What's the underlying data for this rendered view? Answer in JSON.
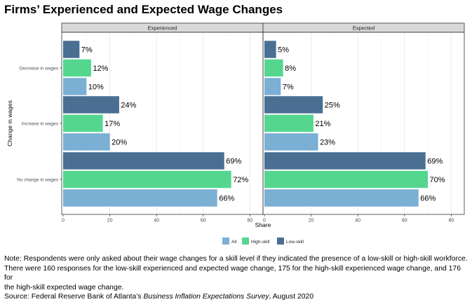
{
  "chart_data": {
    "type": "bar",
    "orientation": "horizontal",
    "title": "Firms’ Experienced and Expected Wage Changes",
    "xlabel": "Share",
    "ylabel": "Change in wages",
    "xlim": [
      0,
      85
    ],
    "xticks": [
      0,
      20,
      40,
      60,
      80
    ],
    "x_tick_labels": [
      "0",
      "20",
      "40",
      "60",
      "80"
    ],
    "categories": [
      "Decrease in wages",
      "Increase in wages",
      "No change in wages"
    ],
    "legend": {
      "position": "bottom",
      "order": [
        "All",
        "High-skill",
        "Low-skill"
      ],
      "colors": {
        "All": "#7bafd4",
        "High-skill": "#55d68f",
        "Low-skill": "#4a6f93"
      }
    },
    "panels": [
      {
        "name": "Experienced",
        "series": [
          {
            "name": "Low-skill",
            "values": [
              7,
              24,
              69
            ],
            "labels": [
              "7%",
              "24%",
              "69%"
            ]
          },
          {
            "name": "High-skill",
            "values": [
              12,
              17,
              72
            ],
            "labels": [
              "12%",
              "17%",
              "72%"
            ]
          },
          {
            "name": "All",
            "values": [
              10,
              20,
              66
            ],
            "labels": [
              "10%",
              "20%",
              "66%"
            ]
          }
        ]
      },
      {
        "name": "Expected",
        "series": [
          {
            "name": "Low-skill",
            "values": [
              5,
              25,
              69
            ],
            "labels": [
              "5%",
              "25%",
              "69%"
            ]
          },
          {
            "name": "High-skill",
            "values": [
              8,
              21,
              70
            ],
            "labels": [
              "8%",
              "21%",
              "70%"
            ]
          },
          {
            "name": "All",
            "values": [
              7,
              23,
              66
            ],
            "labels": [
              "7%",
              "23%",
              "66%"
            ]
          }
        ]
      }
    ]
  },
  "notes": {
    "line1": "Note: Respondents were only asked about their wage changes for a skill level if they indicated the presence of a low-skill or high-skill workforce.",
    "line2": "There were 160 responses for the low-skill experienced and expected wage change, 175 for the high-skill experienced wage change, and 176 for",
    "line3": "the high-skill expected wage change.",
    "source_prefix": "Source: Federal Reserve Bank of Atlanta’s ",
    "source_title": "Business Inflation Expectations Survey",
    "source_suffix": ", August 2020"
  }
}
